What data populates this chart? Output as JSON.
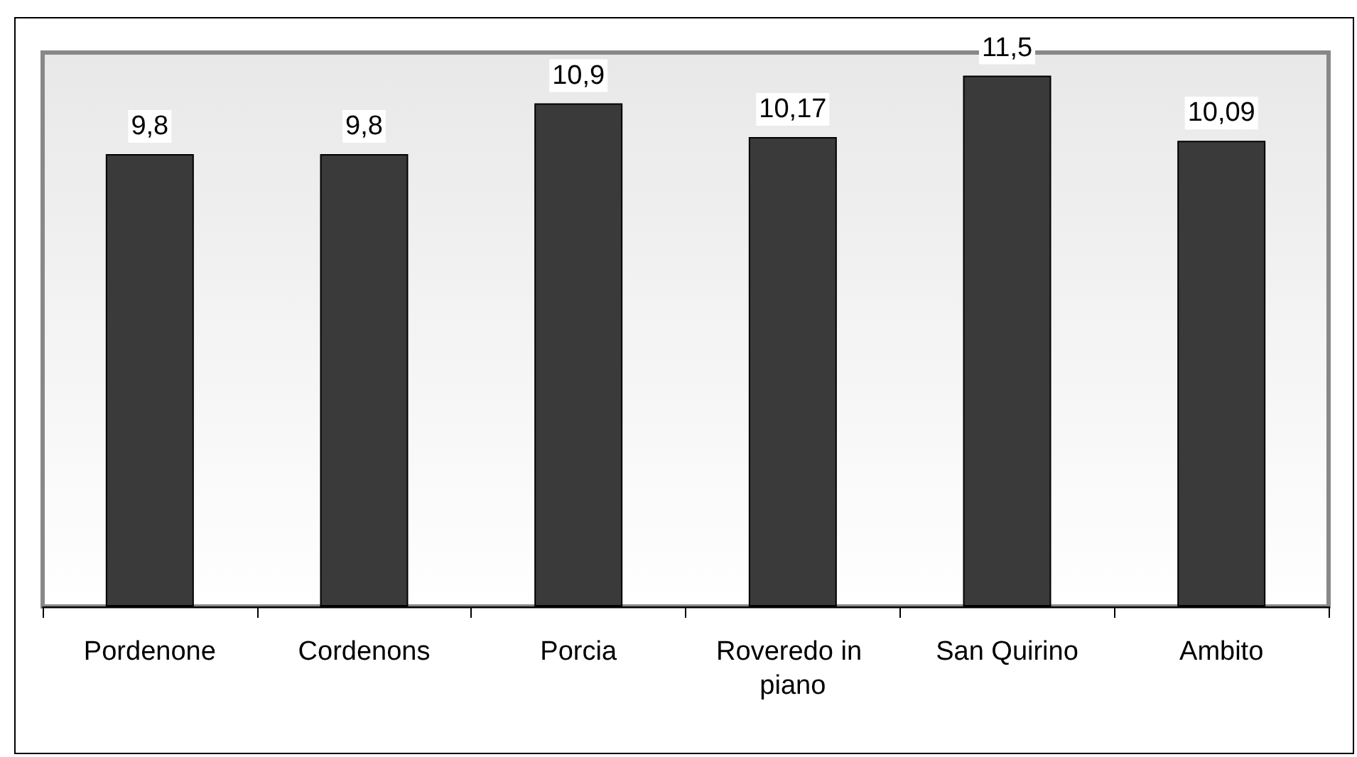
{
  "chart_data": {
    "type": "bar",
    "categories": [
      "Pordenone",
      "Cordenons",
      "Porcia",
      "Roveredo in piano",
      "San Quirino",
      "Ambito"
    ],
    "values": [
      9.8,
      9.8,
      10.9,
      10.17,
      11.5,
      10.09
    ],
    "value_labels": [
      "9,8",
      "9,8",
      "10,9",
      "10,17",
      "11,5",
      "10,09"
    ],
    "color": "#3a3a3a",
    "grid": false
  }
}
